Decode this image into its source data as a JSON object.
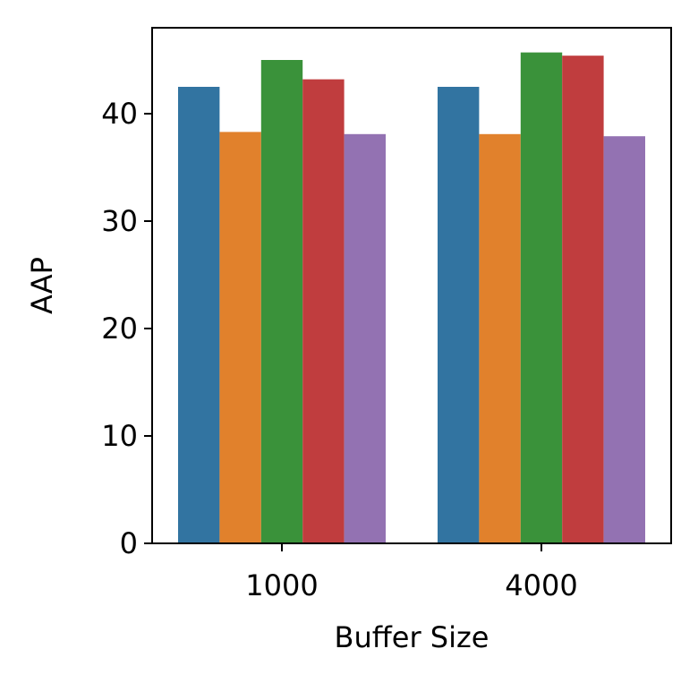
{
  "chart_data": {
    "type": "bar",
    "title": "",
    "xlabel": "Buffer Size",
    "ylabel": "AAP",
    "categories": [
      "1000",
      "4000"
    ],
    "ylim": [
      0,
      48
    ],
    "yticks": [
      0,
      10,
      20,
      30,
      40
    ],
    "grid": false,
    "legend": "none",
    "series": [
      {
        "color": "#3274a1",
        "values": [
          42.5,
          42.5
        ]
      },
      {
        "color": "#e1812c",
        "values": [
          38.3,
          38.1
        ]
      },
      {
        "color": "#3a923a",
        "values": [
          45.0,
          45.7
        ]
      },
      {
        "color": "#c03d3e",
        "values": [
          43.2,
          45.4
        ]
      },
      {
        "color": "#9372b2",
        "values": [
          38.1,
          37.9
        ]
      }
    ]
  }
}
